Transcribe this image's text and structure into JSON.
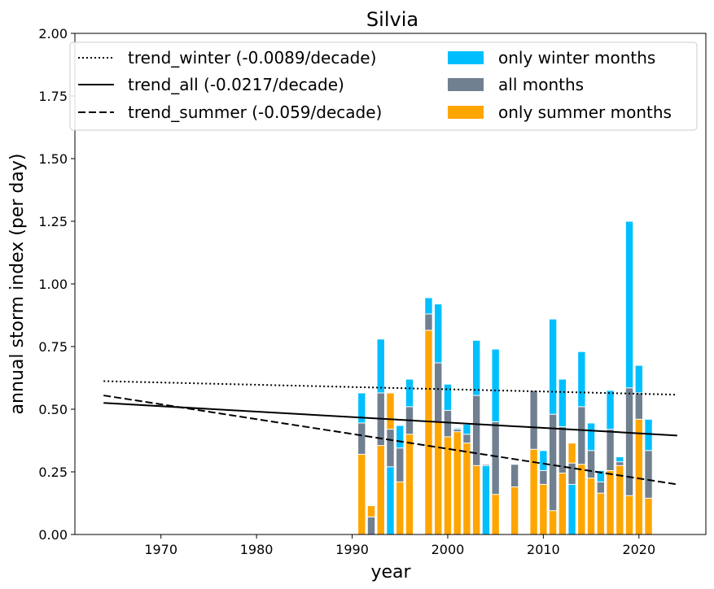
{
  "chart_data": {
    "type": "bar",
    "title": "Silvia",
    "xlabel": "year",
    "ylabel": "annual storm index (per day)",
    "xlim": [
      1961,
      2027
    ],
    "ylim": [
      0,
      2.0
    ],
    "xticks": [
      1970,
      1980,
      1990,
      2000,
      2010,
      2020
    ],
    "yticks": [
      "0.00",
      "0.25",
      "0.50",
      "0.75",
      "1.00",
      "1.25",
      "1.50",
      "1.75",
      "2.00"
    ],
    "legend_position": "top",
    "colors": {
      "winter": "#00bfff",
      "all": "#708090",
      "summer": "#ffa500"
    },
    "bars": [
      {
        "year": 1991,
        "winter": 0.565,
        "all": 0.445,
        "summer": 0.32
      },
      {
        "year": 1992,
        "winter": 0.0,
        "all": 0.07,
        "summer": 0.115
      },
      {
        "year": 1993,
        "winter": 0.78,
        "all": 0.565,
        "summer": 0.355
      },
      {
        "year": 1994,
        "winter": 0.27,
        "all": 0.42,
        "summer": 0.565
      },
      {
        "year": 1995,
        "winter": 0.435,
        "all": 0.345,
        "summer": 0.21
      },
      {
        "year": 1996,
        "winter": 0.62,
        "all": 0.51,
        "summer": 0.4
      },
      {
        "year": 1998,
        "winter": 0.945,
        "all": 0.88,
        "summer": 0.815
      },
      {
        "year": 1999,
        "winter": 0.92,
        "all": 0.685,
        "summer": 0.45
      },
      {
        "year": 2000,
        "winter": 0.6,
        "all": 0.495,
        "summer": 0.39
      },
      {
        "year": 2001,
        "winter": 0.425,
        "all": 0.42,
        "summer": 0.41
      },
      {
        "year": 2002,
        "winter": 0.44,
        "all": 0.4,
        "summer": 0.365
      },
      {
        "year": 2003,
        "winter": 0.775,
        "all": 0.555,
        "summer": 0.275
      },
      {
        "year": 2004,
        "winter": 0.275,
        "all": 0.28,
        "summer": 0.0
      },
      {
        "year": 2005,
        "winter": 0.74,
        "all": 0.45,
        "summer": 0.16
      },
      {
        "year": 2007,
        "winter": 0.0,
        "all": 0.28,
        "summer": 0.19
      },
      {
        "year": 2009,
        "winter": 0.0,
        "all": 0.575,
        "summer": 0.34
      },
      {
        "year": 2010,
        "winter": 0.335,
        "all": 0.255,
        "summer": 0.2
      },
      {
        "year": 2011,
        "winter": 0.86,
        "all": 0.48,
        "summer": 0.095
      },
      {
        "year": 2012,
        "winter": 0.62,
        "all": 0.43,
        "summer": 0.245
      },
      {
        "year": 2013,
        "winter": 0.2,
        "all": 0.285,
        "summer": 0.365
      },
      {
        "year": 2014,
        "winter": 0.73,
        "all": 0.51,
        "summer": 0.28
      },
      {
        "year": 2015,
        "winter": 0.445,
        "all": 0.335,
        "summer": 0.225
      },
      {
        "year": 2016,
        "winter": 0.255,
        "all": 0.21,
        "summer": 0.165
      },
      {
        "year": 2017,
        "winter": 0.575,
        "all": 0.42,
        "summer": 0.255
      },
      {
        "year": 2018,
        "winter": 0.31,
        "all": 0.29,
        "summer": 0.275
      },
      {
        "year": 2019,
        "winter": 1.25,
        "all": 0.585,
        "summer": 0.155
      },
      {
        "year": 2020,
        "winter": 0.675,
        "all": 0.565,
        "summer": 0.46
      },
      {
        "year": 2021,
        "winter": 0.46,
        "all": 0.335,
        "summer": 0.145
      }
    ],
    "trends": [
      {
        "key": "winter",
        "label": "trend_winter (-0.0089/decade)",
        "style": "dotted",
        "x": [
          1964,
          2024
        ],
        "y": [
          0.612,
          0.558
        ]
      },
      {
        "key": "all",
        "label": "trend_all (-0.0217/decade)",
        "style": "solid",
        "x": [
          1964,
          2024
        ],
        "y": [
          0.525,
          0.395
        ]
      },
      {
        "key": "summer",
        "label": "trend_summer (-0.059/decade)",
        "style": "dashed",
        "x": [
          1964,
          2024
        ],
        "y": [
          0.555,
          0.2
        ]
      }
    ],
    "legend_bars": [
      {
        "key": "winter",
        "label": "only winter months"
      },
      {
        "key": "all",
        "label": "all months"
      },
      {
        "key": "summer",
        "label": "only summer months"
      }
    ]
  }
}
